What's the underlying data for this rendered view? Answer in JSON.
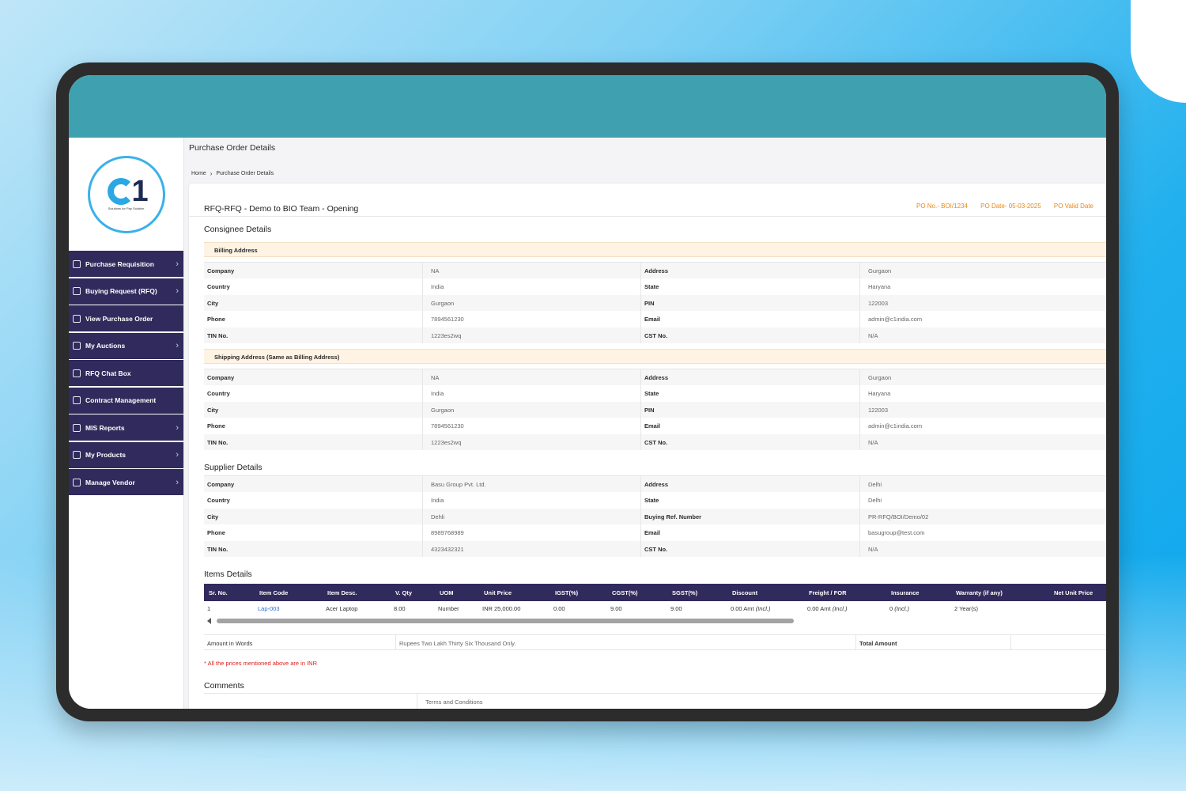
{
  "sidebar": {
    "logo_tagline": "Solutions for Pay Solution",
    "items": [
      {
        "label": "Purchase Requisition",
        "chevron": true,
        "icon": "document-icon"
      },
      {
        "label": "Buying Request (RFQ)",
        "chevron": true,
        "icon": "edit-icon"
      },
      {
        "label": "View Purchase Order",
        "chevron": false,
        "icon": "list-icon"
      },
      {
        "label": "My Auctions",
        "chevron": true,
        "icon": "gavel-icon"
      },
      {
        "label": "RFQ Chat Box",
        "chevron": false,
        "icon": "chat-icon"
      },
      {
        "label": "Contract Management",
        "chevron": false,
        "icon": "file-icon"
      },
      {
        "label": "MIS Reports",
        "chevron": true,
        "icon": "report-icon"
      },
      {
        "label": "My Products",
        "chevron": true,
        "icon": "product-icon"
      },
      {
        "label": "Manage Vendor",
        "chevron": true,
        "icon": "users-icon"
      }
    ]
  },
  "header": {
    "page_title": "Purchase Order Details",
    "breadcrumb": [
      "Home",
      "Purchase Order Details"
    ]
  },
  "po": {
    "title": "RFQ-RFQ - Demo to BIO Team - Opening",
    "po_no": "PO No.- BOI/1234",
    "po_date": "PO Date- 05-03-2025",
    "po_valid": "PO Valid Date"
  },
  "consignee": {
    "title": "Consignee Details",
    "billing_title": "Billing Address",
    "shipping_title": "Shipping Address (Same as Billing Address)",
    "billing": [
      {
        "k": "Company",
        "v": "NA",
        "k2": "Address",
        "v2": "Gurgaon"
      },
      {
        "k": "Country",
        "v": "India",
        "k2": "State",
        "v2": "Haryana"
      },
      {
        "k": "City",
        "v": "Gurgaon",
        "k2": "PIN",
        "v2": "122003"
      },
      {
        "k": "Phone",
        "v": "7894561230",
        "k2": "Email",
        "v2": "admin@c1india.com"
      },
      {
        "k": "TIN No.",
        "v": "1223es2wq",
        "k2": "CST No.",
        "v2": "N/A"
      }
    ],
    "shipping": [
      {
        "k": "Company",
        "v": "NA",
        "k2": "Address",
        "v2": "Gurgaon"
      },
      {
        "k": "Country",
        "v": "India",
        "k2": "State",
        "v2": "Haryana"
      },
      {
        "k": "City",
        "v": "Gurgaon",
        "k2": "PIN",
        "v2": "122003"
      },
      {
        "k": "Phone",
        "v": "7894561230",
        "k2": "Email",
        "v2": "admin@c1india.com"
      },
      {
        "k": "TIN No.",
        "v": "1223es2wq",
        "k2": "CST No.",
        "v2": "N/A"
      }
    ]
  },
  "supplier": {
    "title": "Supplier Details",
    "rows": [
      {
        "k": "Company",
        "v": "Basu Group Pvt. Ltd.",
        "k2": "Address",
        "v2": "Delhi"
      },
      {
        "k": "Country",
        "v": "India",
        "k2": "State",
        "v2": "Delhi"
      },
      {
        "k": "City",
        "v": "Dehli",
        "k2": "Buying Ref. Number",
        "v2": "PR-RFQ/BOI/Demo/02"
      },
      {
        "k": "Phone",
        "v": "8989768989",
        "k2": "Email",
        "v2": "basugroup@test.com"
      },
      {
        "k": "TIN No.",
        "v": "4323432321",
        "k2": "CST No.",
        "v2": "N/A"
      }
    ]
  },
  "items": {
    "title": "Items Details",
    "columns": [
      "Sr. No.",
      "Item Code",
      "Item Desc.",
      "V. Qty",
      "UOM",
      "Unit Price",
      "IGST(%)",
      "CGST(%)",
      "SGST(%)",
      "Discount",
      "Freight / FOR",
      "Insurance",
      "Warranty (if any)",
      "Net Unit Price"
    ],
    "rows": [
      {
        "sr": "1",
        "code": "Lap-003",
        "desc": "Acer Laptop",
        "qty": "8.00",
        "uom": "Number",
        "price": "INR 25,000.00",
        "igst": "0.00",
        "cgst": "9.00",
        "sgst": "9.00",
        "discount": "0.00 Amt",
        "discount_note": "(Incl.)",
        "freight": "0.00 Amt",
        "freight_note": "(Incl.)",
        "insurance": "0",
        "insurance_note": "(Incl.)",
        "warranty": "2 Year(s)",
        "net": ""
      }
    ]
  },
  "amount": {
    "words_label": "Amount in Words",
    "words_value": "Rupees Two Lakh Thirty Six Thousand Only.",
    "total_label": "Total Amount",
    "total_value": ""
  },
  "note": "* All the prices mentioned above are in INR",
  "comments": {
    "title": "Comments",
    "terms_label": "Terms and Conditions"
  },
  "colors": {
    "topbar": "#3fa1b0",
    "sidebar_item": "#312a5c",
    "accent_orange": "#e8891a",
    "note_red": "#e01b1b"
  }
}
